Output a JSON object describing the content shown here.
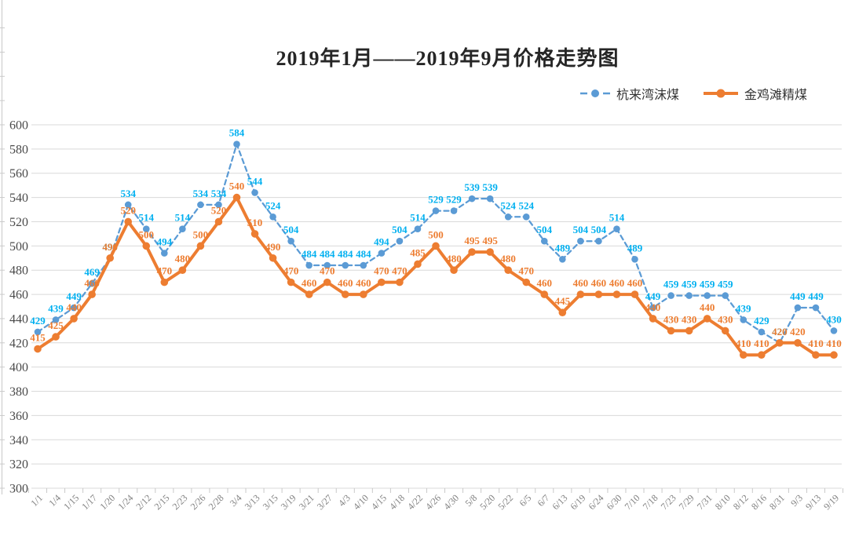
{
  "title": "2019年1月——2019年9月价格走势图",
  "chart_data": {
    "type": "line",
    "x": [
      "1/1",
      "1/4",
      "1/15",
      "1/17",
      "1/20",
      "1/24",
      "2/12",
      "2/15",
      "2/23",
      "2/26",
      "2/28",
      "3/4",
      "3/13",
      "3/15",
      "3/19",
      "3/21",
      "3/27",
      "4/3",
      "4/10",
      "4/15",
      "4/18",
      "4/22",
      "4/26",
      "4/30",
      "5/8",
      "5/20",
      "5/22",
      "6/5",
      "6/7",
      "6/13",
      "6/19",
      "6/24",
      "6/30",
      "7/10",
      "7/18",
      "7/23",
      "7/29",
      "7/31",
      "8/10",
      "8/12",
      "8/16",
      "8/31",
      "9/3",
      "9/13",
      "9/19"
    ],
    "series": [
      {
        "name": "杭来湾沫煤",
        "line_color": "#5B9BD5",
        "label_color": "#00B0F0",
        "line_style": "dashed",
        "values": [
          429,
          439,
          449,
          469,
          490,
          534,
          514,
          494,
          514,
          534,
          534,
          584,
          544,
          524,
          504,
          484,
          484,
          484,
          484,
          494,
          504,
          514,
          529,
          529,
          539,
          539,
          524,
          524,
          504,
          489,
          504,
          504,
          514,
          489,
          449,
          459,
          459,
          459,
          459,
          439,
          429,
          420,
          449,
          449,
          430
        ]
      },
      {
        "name": "金鸡滩精煤",
        "line_color": "#ED7D31",
        "label_color": "#ED7D31",
        "line_style": "solid",
        "values": [
          415,
          425,
          440,
          460,
          490,
          520,
          500,
          470,
          480,
          500,
          520,
          540,
          510,
          490,
          470,
          460,
          470,
          460,
          460,
          470,
          470,
          485,
          500,
          480,
          495,
          495,
          480,
          470,
          460,
          445,
          460,
          460,
          460,
          460,
          440,
          430,
          430,
          440,
          430,
          410,
          410,
          420,
          420,
          410,
          410
        ]
      }
    ],
    "ylim": [
      300,
      600
    ],
    "y_ticks": [
      600,
      580,
      560,
      540,
      520,
      500,
      480,
      460,
      440,
      420,
      400,
      380,
      360,
      340,
      320,
      300
    ],
    "grid": true,
    "data_labels": true,
    "legend_position": "top-right",
    "xlabel": "",
    "ylabel": ""
  },
  "colors": {
    "grid": "#D9D9D9",
    "axis_tick": "#C9C9C9",
    "y_label_text": "#4a4a4a",
    "x_label_text": "#7f7f7f",
    "title_text": "#262626"
  }
}
